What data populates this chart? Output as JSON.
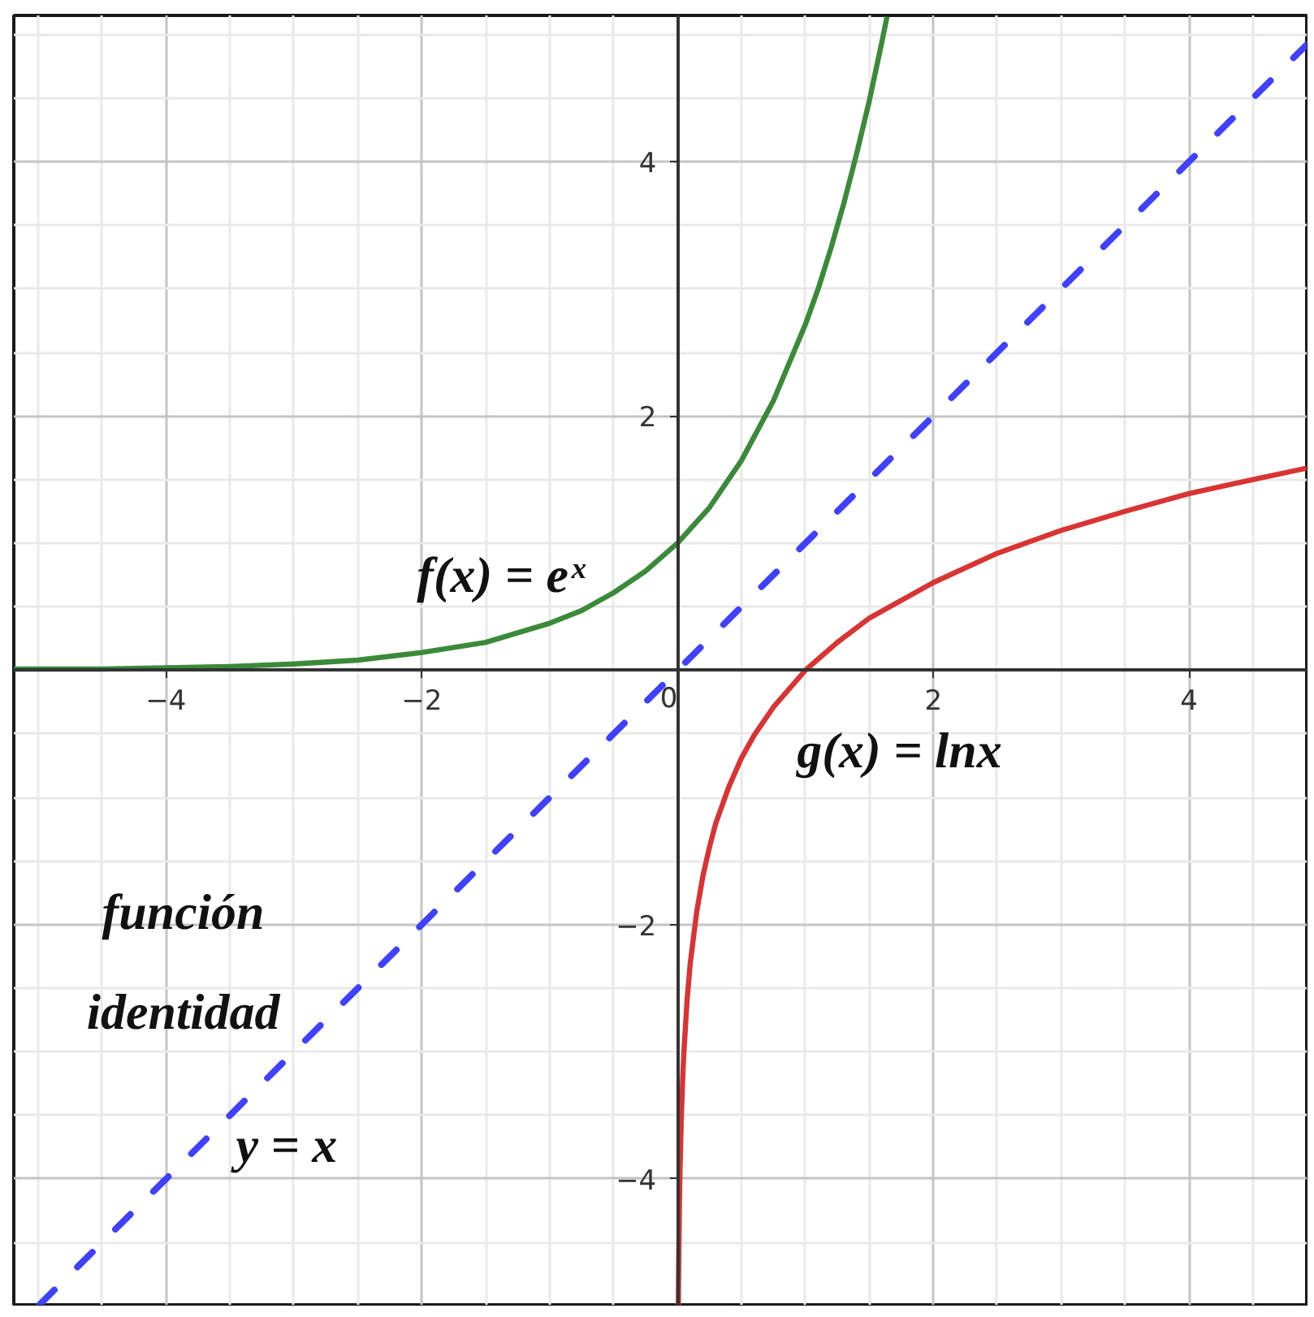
{
  "chart_data": {
    "type": "line",
    "xlim": [
      -5.19,
      4.92
    ],
    "ylim": [
      -4.99,
      5.15
    ],
    "xticks": [
      {
        "value": -5,
        "label": null
      },
      {
        "value": -4.5,
        "label": null
      },
      {
        "value": -4,
        "label": "−4"
      },
      {
        "value": -3.5,
        "label": null
      },
      {
        "value": -3,
        "label": null
      },
      {
        "value": -2.5,
        "label": null
      },
      {
        "value": -2,
        "label": "−2"
      },
      {
        "value": -1.5,
        "label": null
      },
      {
        "value": -1,
        "label": null
      },
      {
        "value": -0.5,
        "label": null
      },
      0,
      {
        "value": 0.5,
        "label": null
      },
      {
        "value": 1,
        "label": null
      },
      {
        "value": 1.5,
        "label": null
      },
      2,
      {
        "value": 2.5,
        "label": null
      },
      {
        "value": 3,
        "label": null
      },
      {
        "value": 3.5,
        "label": null
      },
      4,
      {
        "value": 4.5,
        "label": null
      }
    ],
    "yticks": [
      {
        "value": -4.5,
        "label": null
      },
      {
        "value": -4,
        "label": "−4"
      },
      {
        "value": -3.5,
        "label": null
      },
      {
        "value": -3,
        "label": null
      },
      {
        "value": -2.5,
        "label": null
      },
      {
        "value": -2,
        "label": "−2"
      },
      {
        "value": -1.5,
        "label": null
      },
      {
        "value": -1,
        "label": null
      },
      {
        "value": -0.5,
        "label": null
      },
      {
        "value": 0,
        "label": null
      },
      {
        "value": 0.5,
        "label": null
      },
      {
        "value": 1,
        "label": null
      },
      {
        "value": 1.5,
        "label": null
      },
      2,
      {
        "value": 2.5,
        "label": null
      },
      {
        "value": 3,
        "label": null
      },
      {
        "value": 3.5,
        "label": null
      },
      4,
      {
        "value": 4.5,
        "label": null
      },
      {
        "value": 5,
        "label": null
      }
    ],
    "grid": true,
    "series": [
      {
        "color": "#3a8a3a",
        "x": [
          -5.19,
          -5,
          -4.5,
          -4,
          -3.5,
          -3,
          -2.5,
          -2,
          -1.5,
          -1,
          -0.75,
          -0.5,
          -0.25,
          0,
          0.25,
          0.5,
          0.75,
          1,
          1.1,
          1.2,
          1.3,
          1.4,
          1.5,
          1.6,
          1.638
        ],
        "values": [
          0.01,
          0.01,
          0.01,
          0.02,
          0.03,
          0.05,
          0.08,
          0.14,
          0.22,
          0.37,
          0.47,
          0.61,
          0.78,
          1,
          1.28,
          1.65,
          2.12,
          2.72,
          3.0,
          3.32,
          3.67,
          4.06,
          4.48,
          4.95,
          5.14
        ]
      },
      {
        "color": "#d93434",
        "x": [
          0.0068,
          0.008,
          0.01,
          0.015,
          0.02,
          0.03,
          0.04,
          0.05,
          0.075,
          0.1,
          0.15,
          0.2,
          0.25,
          0.3,
          0.4,
          0.5,
          0.6,
          0.75,
          1,
          1.25,
          1.5,
          2,
          2.5,
          3,
          3.5,
          4,
          4.5,
          4.92
        ],
        "values": [
          -4.99,
          -4.83,
          -4.61,
          -4.2,
          -3.91,
          -3.51,
          -3.22,
          -3.0,
          -2.59,
          -2.3,
          -1.9,
          -1.61,
          -1.39,
          -1.2,
          -0.92,
          -0.69,
          -0.51,
          -0.29,
          0,
          0.22,
          0.41,
          0.69,
          0.92,
          1.1,
          1.25,
          1.39,
          1.5,
          1.59
        ]
      },
      {
        "color": "#4040ff",
        "line_style": "dashed",
        "x": [
          -4.99,
          0,
          4.92
        ],
        "values": [
          -4.99,
          0,
          4.92
        ]
      }
    ],
    "annotations": [
      "f(x) = eˣ",
      "g(x) = lnx",
      "función\nidentidad",
      "y = x"
    ]
  }
}
